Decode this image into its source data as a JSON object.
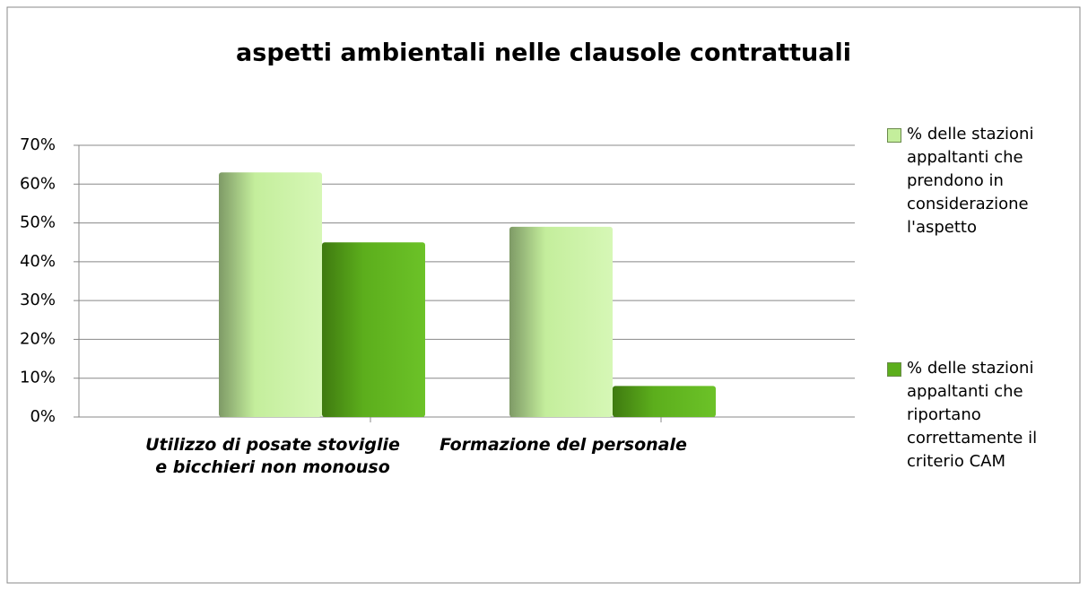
{
  "chart_data": {
    "type": "bar",
    "title": "aspetti ambientali nelle clausole contrattuali",
    "categories": [
      "Utilizzo di posate stoviglie e bicchieri non monouso",
      "Formazione del personale"
    ],
    "series": [
      {
        "name": "% delle stazioni appaltanti che prendono in considerazione l'aspetto",
        "color": "#c4ee9c",
        "values": [
          63,
          49
        ]
      },
      {
        "name": "% delle stazioni appaltanti che riportano correttamente il criterio CAM",
        "color": "#5cae1c",
        "values": [
          45,
          8
        ]
      }
    ],
    "ylim": [
      0,
      70
    ],
    "yticks": [
      {
        "value": 0,
        "label": "0%"
      },
      {
        "value": 10,
        "label": "10%"
      },
      {
        "value": 20,
        "label": "20%"
      },
      {
        "value": 30,
        "label": "30%"
      },
      {
        "value": 40,
        "label": "40%"
      },
      {
        "value": 50,
        "label": "50%"
      },
      {
        "value": 60,
        "label": "60%"
      },
      {
        "value": 70,
        "label": "70%"
      }
    ],
    "grid": true,
    "legend": "right"
  }
}
